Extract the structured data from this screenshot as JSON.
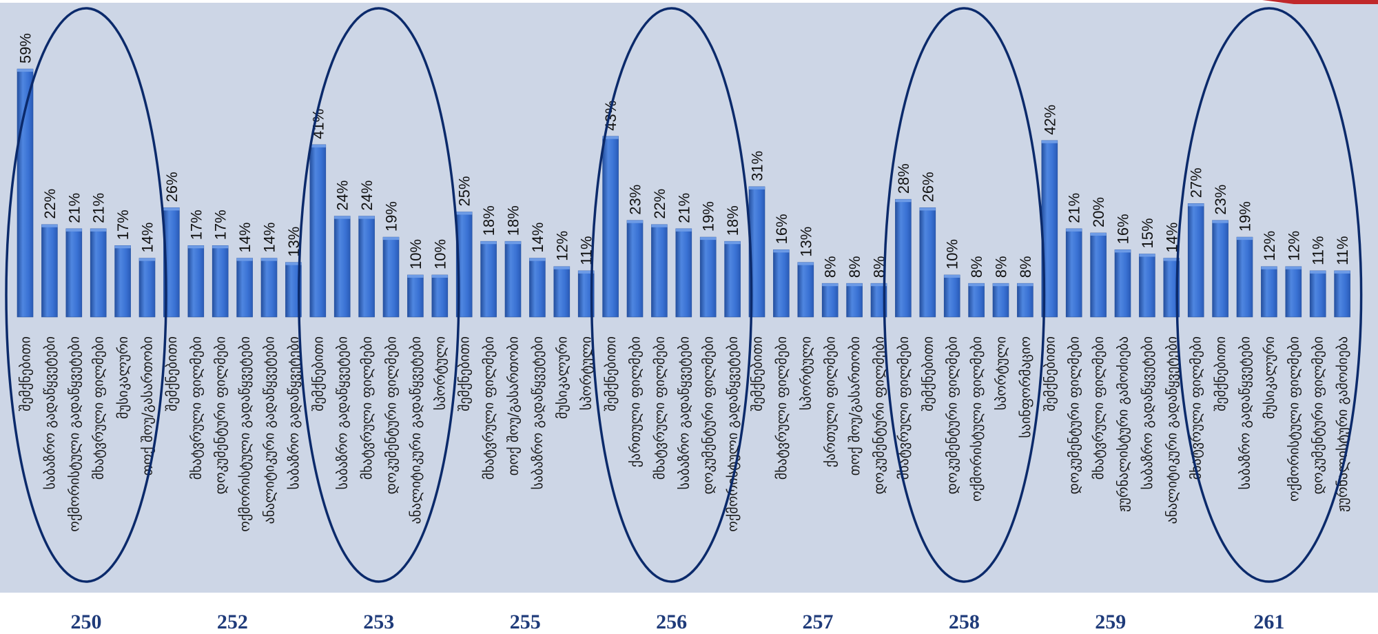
{
  "colors": {
    "plot_background": "#cdd6e6",
    "page_background": "#ffffff",
    "bar": "#3a72d4",
    "bar_highlight": "#6d9be6",
    "bar_shadow": "#244f9e",
    "ellipse": "#0b2a6b",
    "group_label": "#1f3b7a",
    "corner_accent": "#c0282a"
  },
  "chart_data": {
    "type": "bar",
    "ylim": [
      0,
      65
    ],
    "value_suffix": "%",
    "grid": false,
    "legend": "none",
    "highlighted_groups": [
      "250",
      "253",
      "256",
      "258",
      "261"
    ],
    "groups": [
      {
        "name": "250",
        "bars": [
          {
            "category": "შემქნებითი",
            "value": 59
          },
          {
            "category": "საბაზრო გადაწყვეტები",
            "value": 22
          },
          {
            "category": "ოქმორისტული გადაწყვეტები",
            "value": 21
          },
          {
            "category": "მხატვრული ფილმები",
            "value": 21
          },
          {
            "category": "მუსიკალური",
            "value": 17
          },
          {
            "category": "თოქ შოუ/გასართობი",
            "value": 14
          }
        ]
      },
      {
        "name": "252",
        "bars": [
          {
            "category": "შემქნებითი",
            "value": 26
          },
          {
            "category": "მხატვრული ფილმები",
            "value": 17
          },
          {
            "category": "დოკუმენტური ფილმები",
            "value": 17
          },
          {
            "category": "ოქმორისტული გადაწყვეტები",
            "value": 14
          },
          {
            "category": "ანალიტიკური გადაწყვეტები",
            "value": 14
          },
          {
            "category": "საბაზრო გადაწყვეტები",
            "value": 13
          }
        ]
      },
      {
        "name": "253",
        "bars": [
          {
            "category": "შემქნებითი",
            "value": 41
          },
          {
            "category": "საბაზრო გადაწყვეტები",
            "value": 24
          },
          {
            "category": "მხატვრული ფილმები",
            "value": 24
          },
          {
            "category": "დოკუმენტური ფილმები",
            "value": 19
          },
          {
            "category": "ანალიტიკური გადაწყვეტები",
            "value": 10
          },
          {
            "category": "სპორტული",
            "value": 10
          }
        ]
      },
      {
        "name": "255",
        "bars": [
          {
            "category": "შემქნებითი",
            "value": 25
          },
          {
            "category": "მხატვრული ფილმები",
            "value": 18
          },
          {
            "category": "თოქ შოუ/გასართობი",
            "value": 18
          },
          {
            "category": "საბაზრო გადაწყვეტები",
            "value": 14
          },
          {
            "category": "მუსიკალური",
            "value": 12
          },
          {
            "category": "სპორტული",
            "value": 11
          }
        ]
      },
      {
        "name": "256",
        "bars": [
          {
            "category": "შემქნებითი",
            "value": 43
          },
          {
            "category": "ქართული ფილმები",
            "value": 23
          },
          {
            "category": "მხატვრული ფილმები",
            "value": 22
          },
          {
            "category": "საბაზრო გადაწყვეტები",
            "value": 21
          },
          {
            "category": "დოკუმენტური ფილმები",
            "value": 19
          },
          {
            "category": "ოქმორისტული გადაწყვეტები",
            "value": 18
          }
        ]
      },
      {
        "name": "257",
        "bars": [
          {
            "category": "შემქნებითი",
            "value": 31
          },
          {
            "category": "მხატვრული ფილმები",
            "value": 16
          },
          {
            "category": "სპორტული",
            "value": 13
          },
          {
            "category": "ქართული ფილმები",
            "value": 8
          },
          {
            "category": "თოქ შოუ/გასართობი",
            "value": 8
          },
          {
            "category": "დოკუმენტური ფილმები",
            "value": 8
          }
        ]
      },
      {
        "name": "258",
        "bars": [
          {
            "category": "მხატვრული ფილმები",
            "value": 28
          },
          {
            "category": "შემქნებითი",
            "value": 26
          },
          {
            "category": "დოკუმენტური ფილმები",
            "value": 10
          },
          {
            "category": "ოქმორისტული ფილმები",
            "value": 8
          },
          {
            "category": "სპორტული",
            "value": 8
          },
          {
            "category": "საინფორმაციო",
            "value": 8
          }
        ]
      },
      {
        "name": "259",
        "bars": [
          {
            "category": "შემქნებითი",
            "value": 42
          },
          {
            "category": "დოკუმენტური ფილმები",
            "value": 21
          },
          {
            "category": "მხატვრული ფილმები",
            "value": 20
          },
          {
            "category": "ჟურნალისტური გამოძიება",
            "value": 16
          },
          {
            "category": "საბაზრო გადაწყვეტები",
            "value": 15
          },
          {
            "category": "ანალიტიკური გადაწყვეტები",
            "value": 14
          }
        ]
      },
      {
        "name": "261",
        "bars": [
          {
            "category": "მხატვრული ფილმები",
            "value": 27
          },
          {
            "category": "შემქნებითი",
            "value": 23
          },
          {
            "category": "საბაზრო გადაწყვეტები",
            "value": 19
          },
          {
            "category": "მუსიკალური",
            "value": 12
          },
          {
            "category": "ოქმორისტული ფილმები",
            "value": 12
          },
          {
            "category": "დოკუმენტური ფილმები",
            "value": 11
          },
          {
            "category": "ჟურნალისტური გამოძიება",
            "value": 11
          }
        ]
      }
    ]
  }
}
